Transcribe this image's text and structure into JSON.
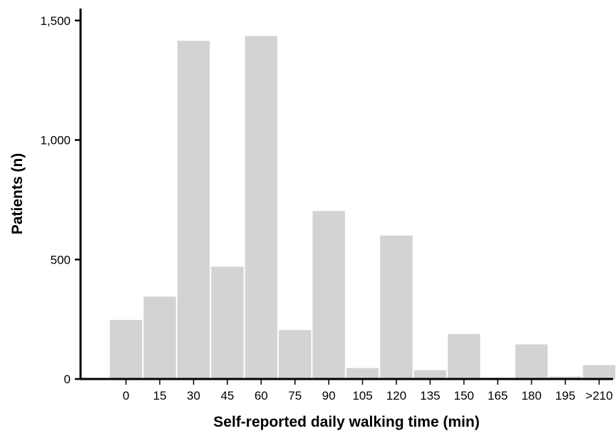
{
  "chart_data": {
    "type": "bar",
    "title": "",
    "xlabel": "Self-reported daily walking time (min)",
    "ylabel": "Patients (n)",
    "categories": [
      "0",
      "15",
      "30",
      "45",
      "60",
      "75",
      "90",
      "105",
      "120",
      "135",
      "150",
      "165",
      "180",
      "195",
      ">210"
    ],
    "values": [
      247,
      345,
      1415,
      470,
      1435,
      205,
      703,
      46,
      600,
      37,
      188,
      5,
      145,
      10,
      58
    ],
    "ylim": [
      0,
      1550
    ],
    "yticks": [
      0,
      500,
      1000,
      1500
    ],
    "ytick_labels": [
      "0",
      "500",
      "1,000",
      "1,500"
    ],
    "grid": false,
    "colors": {
      "bar": "#d3d3d3",
      "axis": "#000000"
    }
  }
}
